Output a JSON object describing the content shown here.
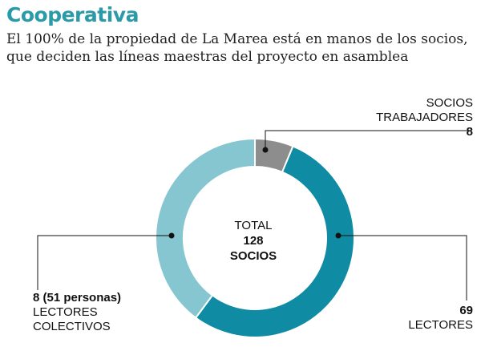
{
  "title": "Cooperativa",
  "subtitle": "El 100% de la propiedad de La Marea está en manos de los socios, que deciden las líneas maestras del proyecto en asamblea",
  "chart_data": {
    "type": "pie",
    "donut": true,
    "total_label": [
      "TOTAL",
      "128",
      "SOCIOS"
    ],
    "slices": [
      {
        "label": [
          "SOCIOS",
          "TRABAJADORES"
        ],
        "value_text": "8",
        "value": 8,
        "color": "#8d8d8d"
      },
      {
        "label": [
          "LECTORES"
        ],
        "value_text": "69",
        "value": 69,
        "color": "#0f8ba3"
      },
      {
        "label": [
          "LECTORES",
          "COLECTIVOS"
        ],
        "value_text": "8 (51 personas)",
        "value": 51,
        "color": "#86c6d1"
      }
    ]
  }
}
